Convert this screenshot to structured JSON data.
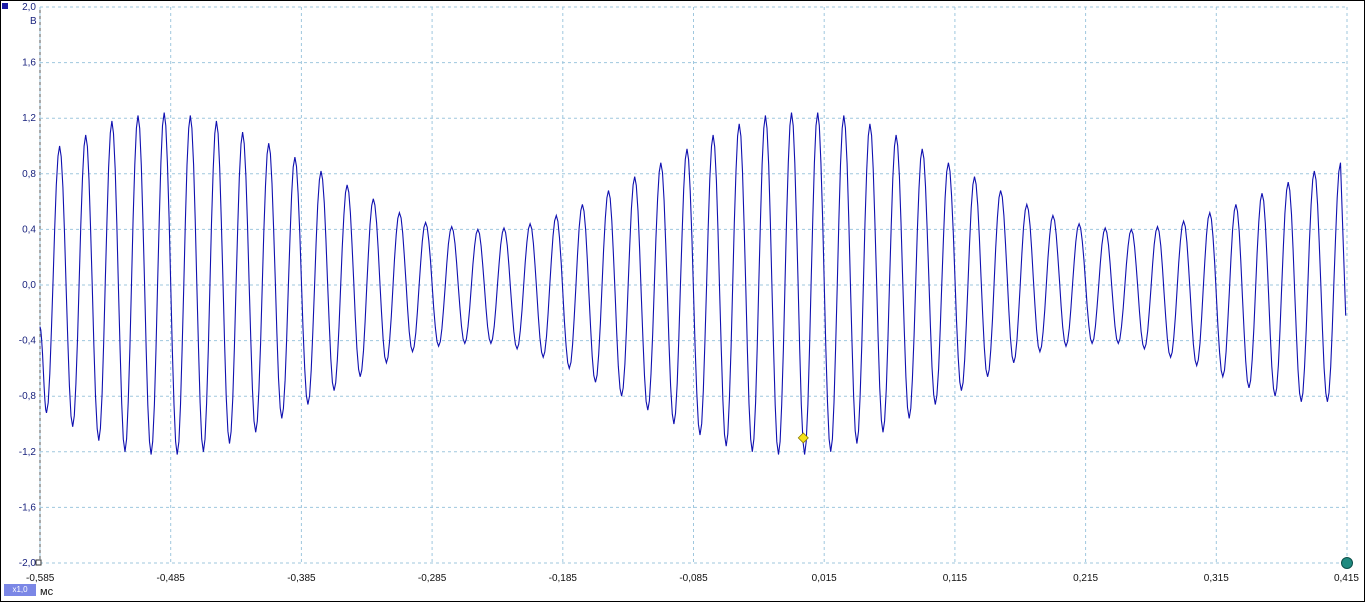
{
  "y_unit": "В",
  "x_unit": "мс",
  "scale_badge": "x1,0",
  "colors": {
    "trace": "#1010b0",
    "grid": "#9fc7de",
    "marker_yellow": "#f5e21a",
    "end_marker": "#1f8a7f"
  },
  "chart_data": {
    "type": "line",
    "xlim": [
      -0.585,
      0.415
    ],
    "ylim": [
      -2.0,
      2.0
    ],
    "x_ticks": [
      "-0,585",
      "-0,485",
      "-0,385",
      "-0,285",
      "-0,185",
      "-0,085",
      "0,015",
      "0,115",
      "0,215",
      "0,315",
      "0,415"
    ],
    "x_tick_values": [
      -0.585,
      -0.485,
      -0.385,
      -0.285,
      -0.185,
      -0.085,
      0.015,
      0.115,
      0.215,
      0.315,
      0.415
    ],
    "y_ticks": [
      "2,0",
      "1,6",
      "1,2",
      "0,8",
      "0,4",
      "0,0",
      "-0,4",
      "-0,8",
      "-1,2",
      "-1,6",
      "-2,0"
    ],
    "y_tick_values": [
      2.0,
      1.6,
      1.2,
      0.8,
      0.4,
      0.0,
      -0.4,
      -0.8,
      -1.2,
      -1.6,
      -2.0
    ],
    "grid": true,
    "series": [
      {
        "description_of_signal": "",
        "peaks_x": [
          -0.57,
          -0.55,
          -0.53,
          -0.51,
          -0.49,
          -0.47,
          -0.45,
          -0.43,
          -0.41,
          -0.39,
          -0.37,
          -0.35,
          -0.33,
          -0.31,
          -0.29,
          -0.27,
          -0.25,
          -0.23,
          -0.21,
          -0.19,
          -0.17,
          -0.15,
          -0.13,
          -0.11,
          -0.09,
          -0.07,
          -0.05,
          -0.03,
          -0.01,
          0.01,
          0.03,
          0.05,
          0.07,
          0.09,
          0.11,
          0.13,
          0.15,
          0.17,
          0.19,
          0.21,
          0.23,
          0.25,
          0.27,
          0.29,
          0.31,
          0.33,
          0.35,
          0.37,
          0.39,
          0.41
        ],
        "peaks_y": [
          1.0,
          1.08,
          1.18,
          1.22,
          1.24,
          1.22,
          1.18,
          1.1,
          1.02,
          0.92,
          0.82,
          0.72,
          0.62,
          0.52,
          0.45,
          0.42,
          0.4,
          0.41,
          0.44,
          0.5,
          0.58,
          0.68,
          0.78,
          0.88,
          0.98,
          1.08,
          1.16,
          1.22,
          1.24,
          1.24,
          1.22,
          1.16,
          1.08,
          0.98,
          0.88,
          0.78,
          0.68,
          0.58,
          0.5,
          0.44,
          0.41,
          0.4,
          0.42,
          0.46,
          0.52,
          0.58,
          0.66,
          0.74,
          0.82,
          0.88
        ],
        "troughs_x": [
          -0.58,
          -0.56,
          -0.54,
          -0.52,
          -0.5,
          -0.48,
          -0.46,
          -0.44,
          -0.42,
          -0.4,
          -0.38,
          -0.36,
          -0.34,
          -0.32,
          -0.3,
          -0.28,
          -0.26,
          -0.24,
          -0.22,
          -0.2,
          -0.18,
          -0.16,
          -0.14,
          -0.12,
          -0.1,
          -0.08,
          -0.06,
          -0.04,
          -0.02,
          0.0,
          0.02,
          0.04,
          0.06,
          0.08,
          0.1,
          0.12,
          0.14,
          0.16,
          0.18,
          0.2,
          0.22,
          0.24,
          0.26,
          0.28,
          0.3,
          0.32,
          0.34,
          0.36,
          0.38,
          0.4
        ],
        "troughs_y": [
          -0.92,
          -1.02,
          -1.12,
          -1.2,
          -1.22,
          -1.22,
          -1.2,
          -1.14,
          -1.06,
          -0.96,
          -0.86,
          -0.76,
          -0.66,
          -0.56,
          -0.48,
          -0.44,
          -0.42,
          -0.42,
          -0.46,
          -0.52,
          -0.6,
          -0.7,
          -0.8,
          -0.9,
          -1.0,
          -1.08,
          -1.16,
          -1.2,
          -1.22,
          -1.22,
          -1.2,
          -1.14,
          -1.06,
          -0.96,
          -0.86,
          -0.76,
          -0.66,
          -0.56,
          -0.48,
          -0.44,
          -0.42,
          -0.42,
          -0.46,
          -0.52,
          -0.58,
          -0.66,
          -0.74,
          -0.8,
          -0.84,
          -0.84
        ]
      }
    ],
    "markers": [
      {
        "x": -0.001,
        "y": -1.1,
        "shape": "diamond",
        "color": "#f5e21a"
      },
      {
        "x": 0.415,
        "y": -2.0,
        "shape": "circle",
        "color": "#1f8a7f"
      }
    ]
  }
}
